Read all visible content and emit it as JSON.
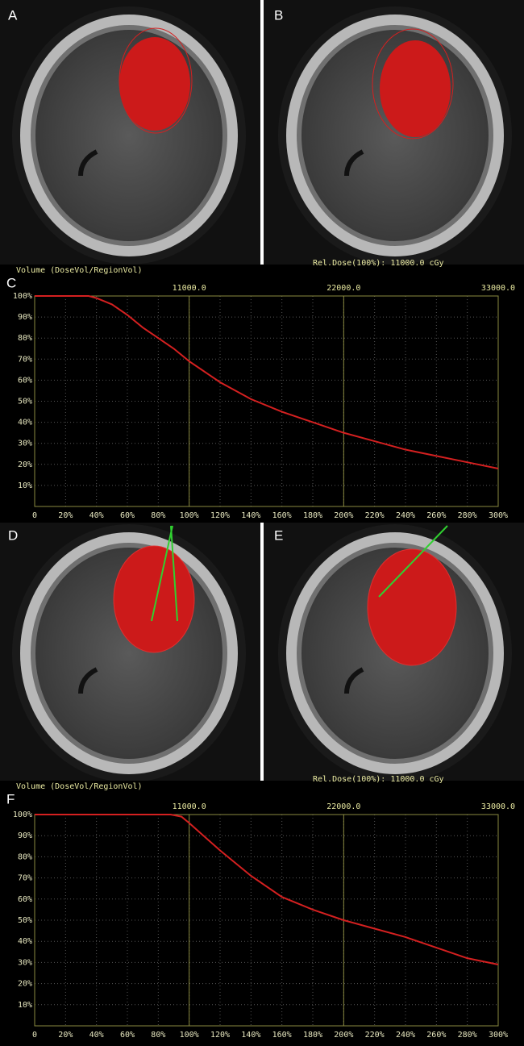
{
  "panel_labels": [
    "A",
    "B",
    "D",
    "E"
  ],
  "chart_data": [
    {
      "type": "line",
      "panel_label": "C",
      "y_label": "Volume (DoseVol/RegionVol)",
      "annotation": "Rel.Dose(100%): 11000.0 cGy",
      "x": [
        0,
        35,
        40,
        50,
        60,
        70,
        80,
        90,
        100,
        120,
        140,
        160,
        180,
        200,
        220,
        240,
        260,
        280,
        300
      ],
      "values": [
        100,
        100,
        99,
        96,
        91,
        85,
        80,
        75,
        69,
        59,
        51,
        45,
        40,
        35,
        31,
        27,
        24,
        21,
        18
      ],
      "color": "#d42020",
      "xlim": [
        0,
        300
      ],
      "ylim": [
        0,
        100
      ],
      "x2lim": [
        0,
        33000
      ],
      "xticks": [
        0,
        {
          "value": 20,
          "label": "20%"
        },
        {
          "value": 40,
          "label": "40%"
        },
        {
          "value": 60,
          "label": "60%"
        },
        {
          "value": 80,
          "label": "80%"
        },
        {
          "value": 100,
          "label": "100%"
        },
        {
          "value": 120,
          "label": "120%"
        },
        {
          "value": 140,
          "label": "140%"
        },
        {
          "value": 160,
          "label": "160%"
        },
        {
          "value": 180,
          "label": "180%"
        },
        {
          "value": 200,
          "label": "200%"
        },
        {
          "value": 220,
          "label": "220%"
        },
        {
          "value": 240,
          "label": "240%"
        },
        {
          "value": 260,
          "label": "260%"
        },
        {
          "value": 280,
          "label": "280%"
        },
        {
          "value": 300,
          "label": "300%"
        }
      ],
      "yticks": [
        {
          "value": 10,
          "label": "10%"
        },
        {
          "value": 20,
          "label": "20%"
        },
        {
          "value": 30,
          "label": "30%"
        },
        {
          "value": 40,
          "label": "40%"
        },
        {
          "value": 50,
          "label": "50%"
        },
        {
          "value": 60,
          "label": "60%"
        },
        {
          "value": 70,
          "label": "70%"
        },
        {
          "value": 80,
          "label": "80%"
        },
        {
          "value": 90,
          "label": "90%"
        },
        {
          "value": 100,
          "label": "100%"
        }
      ],
      "x2ticks": [
        {
          "value": 11000,
          "label": "11000.0"
        },
        {
          "value": 22000,
          "label": "22000.0"
        },
        {
          "value": 33000,
          "label": "33000.0"
        }
      ],
      "grid": true
    },
    {
      "type": "line",
      "panel_label": "F",
      "y_label": "Volume (DoseVol/RegionVol)",
      "annotation": "Rel.Dose(100%): 11000.0 cGy",
      "x": [
        0,
        88,
        95,
        100,
        120,
        140,
        160,
        180,
        200,
        220,
        240,
        260,
        280,
        300
      ],
      "values": [
        100,
        100,
        99,
        96,
        83,
        71,
        61,
        55,
        50,
        46,
        42,
        37,
        32,
        29
      ],
      "color": "#d42020",
      "xlim": [
        0,
        300
      ],
      "ylim": [
        0,
        100
      ],
      "x2lim": [
        0,
        33000
      ],
      "xticks": [
        0,
        {
          "value": 20,
          "label": "20%"
        },
        {
          "value": 40,
          "label": "40%"
        },
        {
          "value": 60,
          "label": "60%"
        },
        {
          "value": 80,
          "label": "80%"
        },
        {
          "value": 100,
          "label": "100%"
        },
        {
          "value": 120,
          "label": "120%"
        },
        {
          "value": 140,
          "label": "140%"
        },
        {
          "value": 160,
          "label": "160%"
        },
        {
          "value": 180,
          "label": "180%"
        },
        {
          "value": 200,
          "label": "200%"
        },
        {
          "value": 220,
          "label": "220%"
        },
        {
          "value": 240,
          "label": "240%"
        },
        {
          "value": 260,
          "label": "260%"
        },
        {
          "value": 280,
          "label": "280%"
        },
        {
          "value": 300,
          "label": "300%"
        }
      ],
      "yticks": [
        {
          "value": 10,
          "label": "10%"
        },
        {
          "value": 20,
          "label": "20%"
        },
        {
          "value": 30,
          "label": "30%"
        },
        {
          "value": 40,
          "label": "40%"
        },
        {
          "value": 50,
          "label": "50%"
        },
        {
          "value": 60,
          "label": "60%"
        },
        {
          "value": 70,
          "label": "70%"
        },
        {
          "value": 80,
          "label": "80%"
        },
        {
          "value": 90,
          "label": "90%"
        },
        {
          "value": 100,
          "label": "100%"
        }
      ],
      "x2ticks": [
        {
          "value": 11000,
          "label": "11000.0"
        },
        {
          "value": 22000,
          "label": "22000.0"
        },
        {
          "value": 33000,
          "label": "33000.0"
        }
      ],
      "grid": true
    }
  ]
}
